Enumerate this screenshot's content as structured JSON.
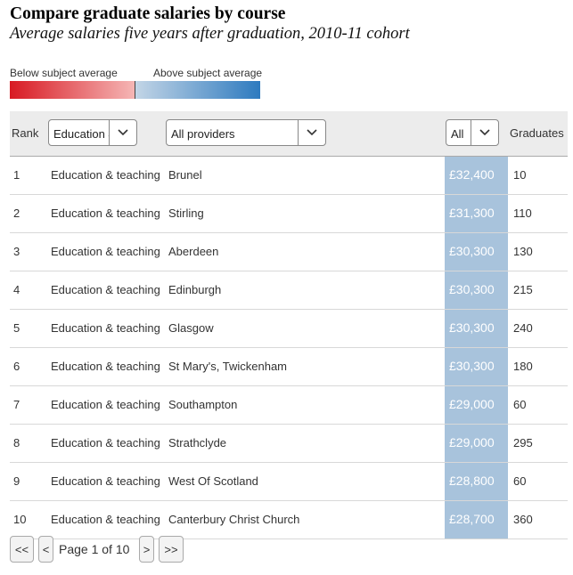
{
  "title": "Compare graduate salaries by course",
  "subtitle": "Average salaries five years after graduation, 2010-11 cohort",
  "legend": {
    "below_label": "Below subject average",
    "above_label": "Above subject average",
    "below_color": "#d81a23",
    "above_color": "#2d7abf"
  },
  "header": {
    "rank": "Rank",
    "subject_select": "Education & teaching",
    "provider_select": "All providers",
    "filter_select": "All",
    "graduates": "Graduates"
  },
  "rows": [
    {
      "rank": "1",
      "subject": "Education & teaching",
      "provider": "Brunel",
      "salary": "£32,400",
      "graduates": "10"
    },
    {
      "rank": "2",
      "subject": "Education & teaching",
      "provider": "Stirling",
      "salary": "£31,300",
      "graduates": "110"
    },
    {
      "rank": "3",
      "subject": "Education & teaching",
      "provider": "Aberdeen",
      "salary": "£30,300",
      "graduates": "130"
    },
    {
      "rank": "4",
      "subject": "Education & teaching",
      "provider": "Edinburgh",
      "salary": "£30,300",
      "graduates": "215"
    },
    {
      "rank": "5",
      "subject": "Education & teaching",
      "provider": "Glasgow",
      "salary": "£30,300",
      "graduates": "240"
    },
    {
      "rank": "6",
      "subject": "Education & teaching",
      "provider": "St Mary's, Twickenham",
      "salary": "£30,300",
      "graduates": "180"
    },
    {
      "rank": "7",
      "subject": "Education & teaching",
      "provider": "Southampton",
      "salary": "£29,000",
      "graduates": "60"
    },
    {
      "rank": "8",
      "subject": "Education & teaching",
      "provider": "Strathclyde",
      "salary": "£29,000",
      "graduates": "295"
    },
    {
      "rank": "9",
      "subject": "Education & teaching",
      "provider": "West Of Scotland",
      "salary": "£28,800",
      "graduates": "60"
    },
    {
      "rank": "10",
      "subject": "Education & teaching",
      "provider": "Canterbury Christ Church",
      "salary": "£28,700",
      "graduates": "360"
    }
  ],
  "pagination": {
    "first": "<<",
    "prev": "<",
    "label": "Page 1 of 10",
    "next": ">",
    "last": ">>"
  }
}
